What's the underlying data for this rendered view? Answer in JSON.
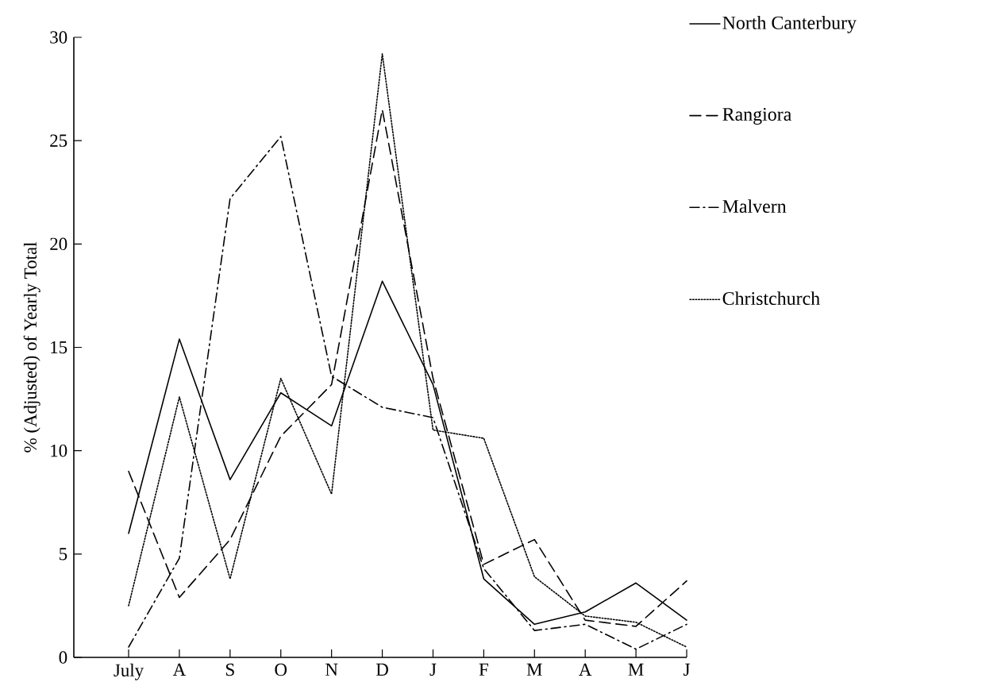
{
  "chart_data": {
    "type": "line",
    "ylabel": "% (Adjusted) of Yearly Total",
    "categories": [
      "July",
      "A",
      "S",
      "O",
      "N",
      "D",
      "J",
      "F",
      "M",
      "A",
      "M",
      "J"
    ],
    "ylim": [
      0,
      30
    ],
    "yticks": [
      0,
      5,
      10,
      15,
      20,
      25,
      30
    ],
    "legend": "top right",
    "series": [
      {
        "name": "North Canterbury",
        "color": "#000000",
        "line_style": "solid",
        "values": [
          6.0,
          15.4,
          8.6,
          12.8,
          11.2,
          18.2,
          13.2,
          3.8,
          1.6,
          2.2,
          3.6,
          1.8
        ]
      },
      {
        "name": "Rangiora",
        "color": "#000000",
        "line_style": "dashed",
        "values": [
          9.0,
          2.9,
          5.7,
          10.7,
          13.2,
          26.5,
          13.5,
          4.5,
          5.7,
          1.8,
          1.5,
          3.7
        ]
      },
      {
        "name": "Malvern",
        "color": "#000000",
        "line_style": "dashdot",
        "values": [
          0.5,
          4.8,
          22.2,
          25.2,
          13.6,
          12.1,
          11.6,
          4.3,
          1.3,
          1.6,
          0.4,
          1.6
        ]
      },
      {
        "name": "Christchurch",
        "color": "#000000",
        "line_style": "dotted",
        "values": [
          2.5,
          12.6,
          3.8,
          13.5,
          7.9,
          29.2,
          11.0,
          10.6,
          3.9,
          2.0,
          1.7,
          0.5
        ]
      }
    ]
  }
}
